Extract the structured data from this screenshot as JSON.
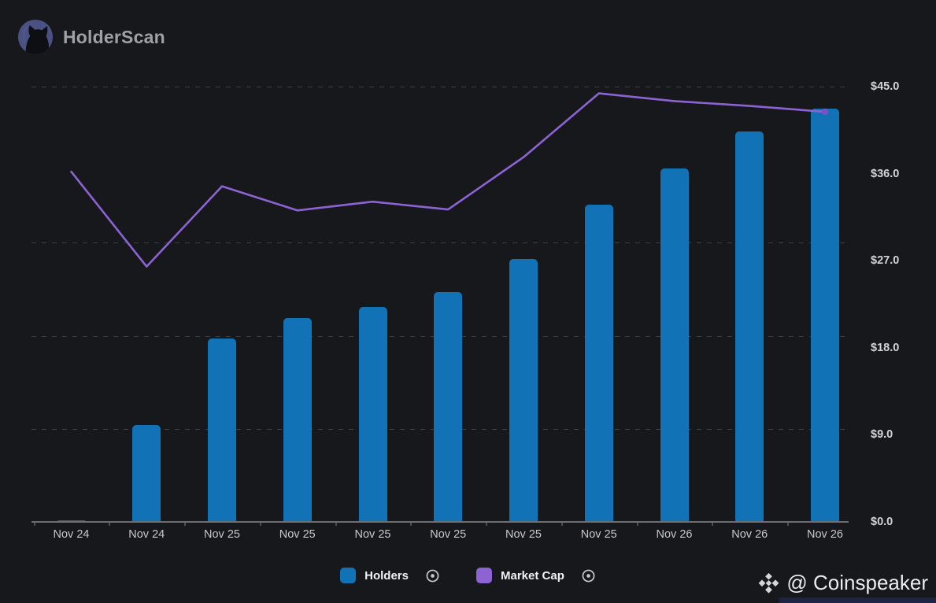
{
  "header": {
    "title": "HolderScan"
  },
  "y_axis": {
    "labels": [
      "$45.0",
      "$36.0",
      "$27.0",
      "$18.0",
      "$9.0",
      "$0.0"
    ]
  },
  "legend": {
    "items": [
      {
        "label": "Holders",
        "color": "#1173b5"
      },
      {
        "label": "Market Cap",
        "color": "#8d63d3"
      }
    ]
  },
  "watermark": {
    "text": "@ Coinspeaker"
  },
  "chart_data": {
    "type": "bar+line",
    "title": "",
    "categories": [
      "Nov 24",
      "Nov 24",
      "Nov 25",
      "Nov 25",
      "Nov 25",
      "Nov 25",
      "Nov 25",
      "Nov 25",
      "Nov 26",
      "Nov 26",
      "Nov 26"
    ],
    "series": [
      {
        "name": "Holders",
        "type": "bar",
        "color": "#1173b5",
        "values": [
          0.1,
          10.0,
          19.0,
          21.1,
          22.2,
          23.8,
          27.2,
          32.8,
          36.5,
          40.4,
          42.7
        ]
      },
      {
        "name": "Market Cap",
        "type": "line",
        "color": "#8d63d3",
        "values": [
          36.2,
          26.4,
          34.7,
          32.2,
          33.1,
          32.3,
          37.7,
          44.3,
          43.5,
          43.0,
          42.4
        ]
      }
    ],
    "ylim": [
      0,
      45
    ],
    "y_tick_labels": [
      "$0.0",
      "$9.0",
      "$18.0",
      "$27.0",
      "$36.0",
      "$45.0"
    ],
    "xlabel": "",
    "ylabel": "",
    "y_axis_side": "right",
    "legend_position": "bottom",
    "grid": "dashed-horizontal"
  }
}
